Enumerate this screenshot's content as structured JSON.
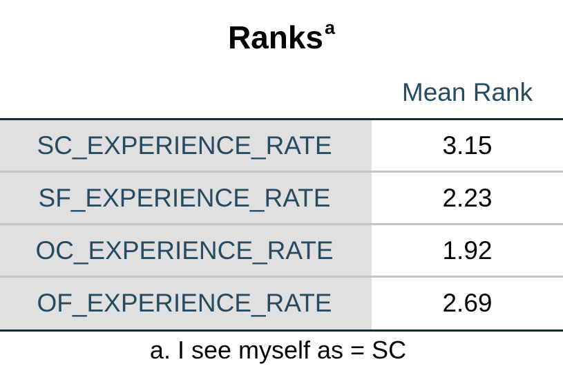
{
  "table": {
    "title": "Ranks",
    "title_superscript": "a",
    "column_header": "Mean Rank",
    "rows": [
      {
        "label": "SC_EXPERIENCE_RATE",
        "value": "3.15"
      },
      {
        "label": "SF_EXPERIENCE_RATE",
        "value": "2.23"
      },
      {
        "label": "OC_EXPERIENCE_RATE",
        "value": "1.92"
      },
      {
        "label": "OF_EXPERIENCE_RATE",
        "value": "2.69"
      }
    ],
    "footnote": "a. I see myself as = SC"
  },
  "colors": {
    "header_text": "#264a60",
    "label_background": "#e0e0e0",
    "rule": "#152935",
    "row_divider": "#c4c4c4"
  }
}
